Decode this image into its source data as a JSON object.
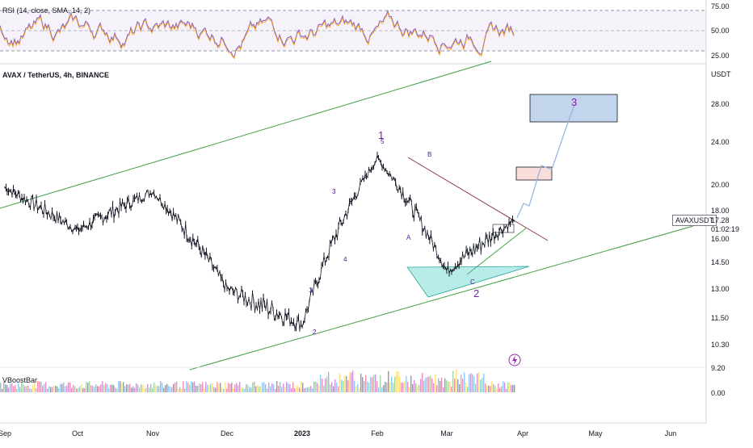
{
  "rsi": {
    "label": "RSI (14, close, SMA, 14, 2)",
    "ticks": [
      "75.00",
      "50.00",
      "25.00"
    ],
    "line_color": "#7e57c2",
    "band_color": "#7e57c2",
    "upper": 70,
    "lower": 30
  },
  "main": {
    "symbol_label": "AVAX / TetherUS, 4h, BINANCE",
    "currency": "USDT",
    "price_ticks": [
      "28.00",
      "24.00",
      "20.00",
      "18.00",
      "16.00",
      "14.50",
      "13.00",
      "11.50",
      "10.30",
      "9.20"
    ],
    "last_price": "17.28",
    "countdown": "01:02:19",
    "ticker_tag": "AVAXUSDT",
    "trend_color": "#43a047",
    "resistance_color": "#8e3a59"
  },
  "waves": {
    "color": "#7b1fa2",
    "minor_color": "#4a148c",
    "labels": [
      {
        "text": "1",
        "type": "major"
      },
      {
        "text": "2",
        "type": "major"
      },
      {
        "text": "3",
        "type": "major"
      },
      {
        "text": "1",
        "type": "minor"
      },
      {
        "text": "2",
        "type": "minor"
      },
      {
        "text": "3",
        "type": "minor"
      },
      {
        "text": "4",
        "type": "minor"
      },
      {
        "text": "5",
        "type": "minor"
      },
      {
        "text": "A",
        "type": "minor"
      },
      {
        "text": "B",
        "type": "minor"
      },
      {
        "text": "C",
        "type": "minor"
      }
    ]
  },
  "volume": {
    "label": "VBoostBar",
    "tick": "0.00"
  },
  "time_axis": [
    "Sep",
    "Oct",
    "Nov",
    "Dec",
    "2023",
    "Feb",
    "Mar",
    "Apr",
    "May",
    "Jun"
  ],
  "chart_data": {
    "type": "line",
    "title": "AVAX / TetherUS, 4h, BINANCE",
    "xlabel": "",
    "ylabel": "USDT",
    "x": [
      "Sep",
      "Oct",
      "Nov",
      "Dec",
      "2023",
      "Feb",
      "Mar",
      "Apr"
    ],
    "series": [
      {
        "values": [
          19.8,
          16.6,
          19.5,
          13.0,
          11.2,
          22.5,
          14.0,
          17.28
        ]
      }
    ],
    "ylim": [
      9.2,
      31
    ],
    "grid": false,
    "legend": "none"
  }
}
